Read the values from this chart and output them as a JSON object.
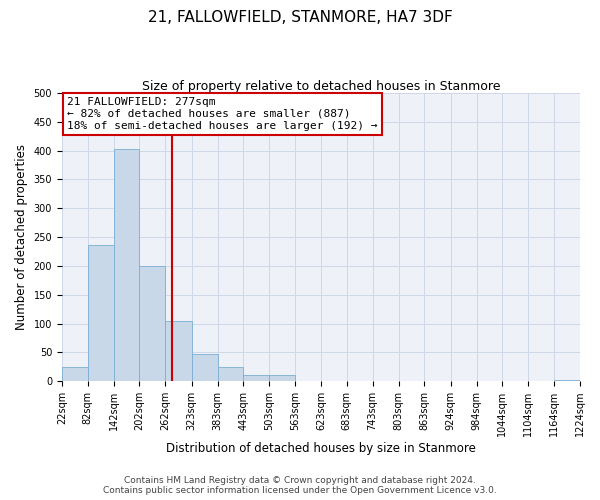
{
  "title": "21, FALLOWFIELD, STANMORE, HA7 3DF",
  "subtitle": "Size of property relative to detached houses in Stanmore",
  "xlabel": "Distribution of detached houses by size in Stanmore",
  "ylabel": "Number of detached properties",
  "bin_edges": [
    22,
    82,
    142,
    202,
    262,
    323,
    383,
    443,
    503,
    563,
    623,
    683,
    743,
    803,
    863,
    924,
    984,
    1044,
    1104,
    1164,
    1224
  ],
  "bin_labels": [
    "22sqm",
    "82sqm",
    "142sqm",
    "202sqm",
    "262sqm",
    "323sqm",
    "383sqm",
    "443sqm",
    "503sqm",
    "563sqm",
    "623sqm",
    "683sqm",
    "743sqm",
    "803sqm",
    "863sqm",
    "924sqm",
    "984sqm",
    "1044sqm",
    "1104sqm",
    "1164sqm",
    "1224sqm"
  ],
  "bar_heights": [
    25,
    237,
    403,
    200,
    105,
    48,
    25,
    10,
    10,
    0,
    0,
    0,
    0,
    0,
    0,
    0,
    0,
    0,
    0,
    2
  ],
  "bar_color": "#c8d8e8",
  "bar_edge_color": "#7aafd4",
  "property_value": 277,
  "vline_color": "#cc0000",
  "annotation_line1": "21 FALLOWFIELD: 277sqm",
  "annotation_line2": "← 82% of detached houses are smaller (887)",
  "annotation_line3": "18% of semi-detached houses are larger (192) →",
  "annotation_box_color": "#ffffff",
  "annotation_box_edge_color": "#cc0000",
  "ylim": [
    0,
    500
  ],
  "yticks": [
    0,
    50,
    100,
    150,
    200,
    250,
    300,
    350,
    400,
    450,
    500
  ],
  "grid_color": "#cdd8e8",
  "bg_color": "#eef2f8",
  "footer_line1": "Contains HM Land Registry data © Crown copyright and database right 2024.",
  "footer_line2": "Contains public sector information licensed under the Open Government Licence v3.0.",
  "title_fontsize": 11,
  "subtitle_fontsize": 9,
  "label_fontsize": 8.5,
  "tick_fontsize": 7,
  "annotation_fontsize": 8,
  "footer_fontsize": 6.5
}
